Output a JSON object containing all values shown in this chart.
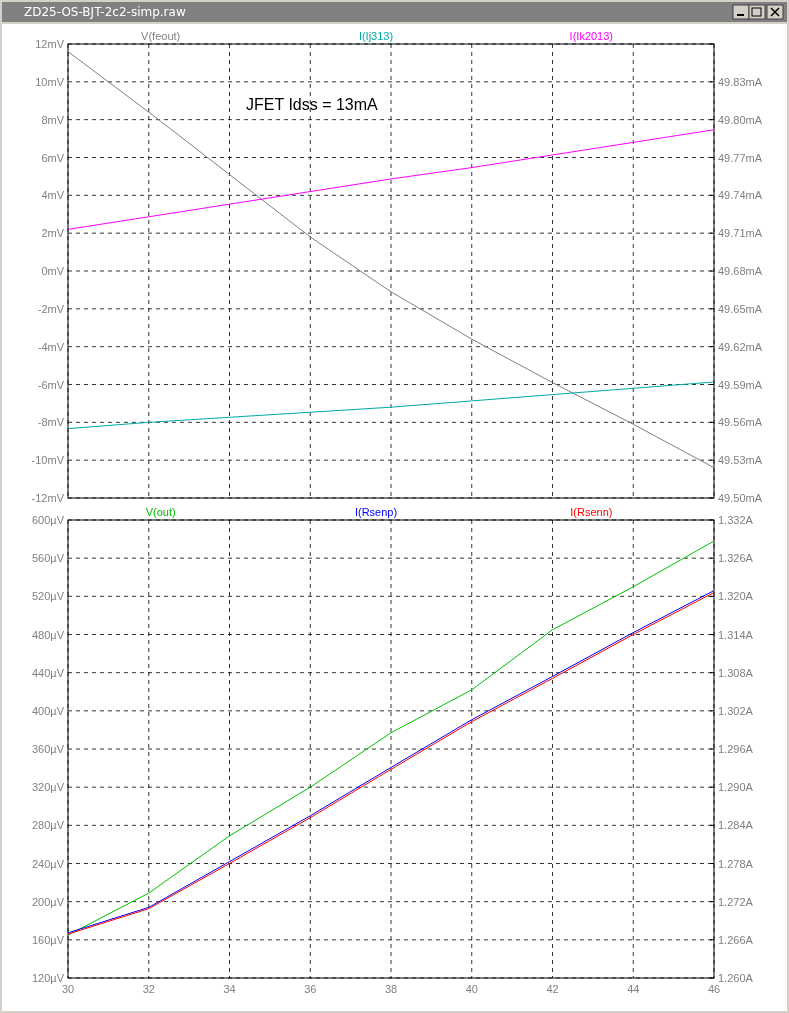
{
  "chart_data": [
    {
      "type": "line",
      "title": "ZD25-OS-BJT-2c2-simp.raw",
      "xlim": [
        30,
        46
      ],
      "xticks": [
        30,
        32,
        34,
        36,
        38,
        40,
        42,
        44,
        46
      ],
      "ylim": [
        -12,
        12
      ],
      "yticks": [
        {
          "value": -12,
          "label": "-12mV"
        },
        {
          "value": -10,
          "label": "-10mV"
        },
        {
          "value": -8,
          "label": "-8mV"
        },
        {
          "value": -6,
          "label": "-6mV"
        },
        {
          "value": -4,
          "label": "-4mV"
        },
        {
          "value": -2,
          "label": "-2mV"
        },
        {
          "value": 0,
          "label": "0mV"
        },
        {
          "value": 2,
          "label": "2mV"
        },
        {
          "value": 4,
          "label": "4mV"
        },
        {
          "value": 6,
          "label": "6mV"
        },
        {
          "value": 8,
          "label": "8mV"
        },
        {
          "value": 10,
          "label": "10mV"
        },
        {
          "value": 12,
          "label": "12mV"
        }
      ],
      "y2lim": [
        49.5,
        49.86
      ],
      "y2ticks": [
        {
          "value": 49.5,
          "label": "49.50mA"
        },
        {
          "value": 49.53,
          "label": "49.53mA"
        },
        {
          "value": 49.56,
          "label": "49.56mA"
        },
        {
          "value": 49.59,
          "label": "49.59mA"
        },
        {
          "value": 49.62,
          "label": "49.62mA"
        },
        {
          "value": 49.65,
          "label": "49.65mA"
        },
        {
          "value": 49.68,
          "label": "49.68mA"
        },
        {
          "value": 49.71,
          "label": "49.71mA"
        },
        {
          "value": 49.74,
          "label": "49.74mA"
        },
        {
          "value": 49.77,
          "label": "49.77mA"
        },
        {
          "value": 49.8,
          "label": "49.80mA"
        },
        {
          "value": 49.83,
          "label": "49.83mA"
        },
        {
          "value": 49.86,
          "label": null
        }
      ],
      "tick_labels": "y",
      "grid": true,
      "legend": "top",
      "line_style": "solid",
      "annotations": [
        "JFET Idss = 13mA"
      ],
      "x": [
        30,
        32,
        34,
        36,
        38,
        40,
        42,
        44,
        46
      ],
      "series": [
        {
          "name": "V(feout)",
          "color": "#808080",
          "values": [
            11.6,
            8.4,
            5.1,
            1.8,
            -1.1,
            -3.6,
            -5.9,
            -8.1,
            -10.4
          ]
        },
        {
          "name": "I(Ij313)",
          "color": "#00a8a8",
          "axis": "y2",
          "values": [
            49.555,
            49.56,
            49.564,
            49.568,
            49.572,
            49.577,
            49.582,
            49.587,
            49.592
          ]
        },
        {
          "name": "I(Ik2013)",
          "color": "#ff00ff",
          "axis": "y2",
          "values": [
            49.713,
            49.723,
            49.733,
            49.743,
            49.753,
            49.762,
            49.772,
            49.782,
            49.792
          ]
        }
      ]
    },
    {
      "type": "line",
      "xlim": [
        30,
        46
      ],
      "xticks": [
        30,
        32,
        34,
        36,
        38,
        40,
        42,
        44,
        46
      ],
      "ylim": [
        120,
        600
      ],
      "yticks": [
        {
          "value": 120,
          "label": "120µV"
        },
        {
          "value": 160,
          "label": "160µV"
        },
        {
          "value": 200,
          "label": "200µV"
        },
        {
          "value": 240,
          "label": "240µV"
        },
        {
          "value": 280,
          "label": "280µV"
        },
        {
          "value": 320,
          "label": "320µV"
        },
        {
          "value": 360,
          "label": "360µV"
        },
        {
          "value": 400,
          "label": "400µV"
        },
        {
          "value": 440,
          "label": "440µV"
        },
        {
          "value": 480,
          "label": "480µV"
        },
        {
          "value": 520,
          "label": "520µV"
        },
        {
          "value": 560,
          "label": "560µV"
        },
        {
          "value": 600,
          "label": "600µV"
        }
      ],
      "y2lim": [
        1.26,
        1.332
      ],
      "y2ticks": [
        {
          "value": 1.26,
          "label": "1.260A"
        },
        {
          "value": 1.266,
          "label": "1.266A"
        },
        {
          "value": 1.272,
          "label": "1.272A"
        },
        {
          "value": 1.278,
          "label": "1.278A"
        },
        {
          "value": 1.284,
          "label": "1.284A"
        },
        {
          "value": 1.29,
          "label": "1.290A"
        },
        {
          "value": 1.296,
          "label": "1.296A"
        },
        {
          "value": 1.302,
          "label": "1.302A"
        },
        {
          "value": 1.308,
          "label": "1.308A"
        },
        {
          "value": 1.314,
          "label": "1.314A"
        },
        {
          "value": 1.32,
          "label": "1.320A"
        },
        {
          "value": 1.326,
          "label": "1.326A"
        },
        {
          "value": 1.332,
          "label": "1.332A"
        }
      ],
      "grid": true,
      "legend": "top",
      "line_style": "solid",
      "x": [
        30,
        32,
        34,
        36,
        38,
        40,
        42,
        44,
        46
      ],
      "series": [
        {
          "name": "V(out)",
          "color": "#00c000",
          "values": [
            165,
            209,
            269,
            320,
            377,
            422,
            485,
            530,
            578
          ]
        },
        {
          "name": "I(Rsenp)",
          "color": "#0000ff",
          "axis": "y2",
          "values": [
            1.2671,
            1.2711,
            1.2783,
            1.2855,
            1.2931,
            1.3006,
            1.3074,
            1.3143,
            1.3209
          ]
        },
        {
          "name": "I(Rsenn)",
          "color": "#ff0000",
          "axis": "y2",
          "values": [
            1.2669,
            1.2709,
            1.278,
            1.2852,
            1.2928,
            1.3003,
            1.3071,
            1.314,
            1.3206
          ]
        }
      ]
    }
  ]
}
